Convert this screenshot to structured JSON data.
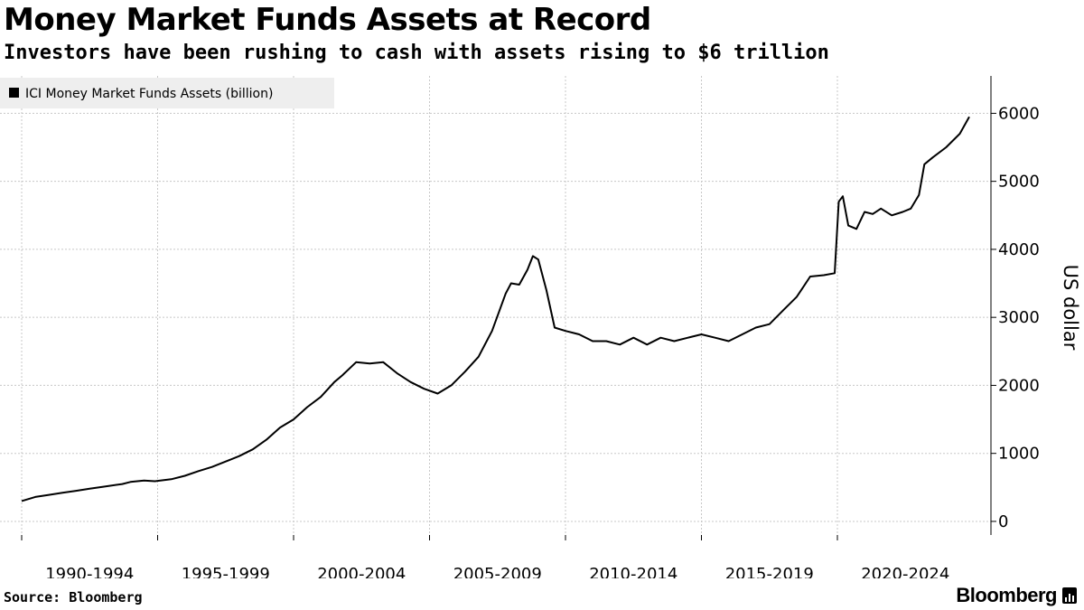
{
  "header": {
    "title": "Money Market Funds Assets at Record",
    "subtitle": "Investors have been rushing to cash with assets rising to $6 trillion"
  },
  "footer": {
    "source": "Source: Bloomberg",
    "brand": "Bloomberg"
  },
  "colors": {
    "line": "#000000",
    "grid": "#c8c8c8",
    "legend_bg": "#eeeeee"
  },
  "chart_data": {
    "type": "line",
    "title": "Money Market Funds Assets at Record",
    "ylabel": "US dollar",
    "xlabel": "",
    "ylim": [
      -200,
      6550
    ],
    "xlim": [
      1990.0,
      2024.85
    ],
    "yticks": [
      0,
      1000,
      2000,
      3000,
      4000,
      5000,
      6000
    ],
    "ytick_labels": [
      "0",
      "1000",
      "2000",
      "3000",
      "4000",
      "5000",
      "6000"
    ],
    "x_boundaries": [
      1990,
      1995,
      2000,
      2005,
      2010,
      2015,
      2020
    ],
    "x_category_labels": [
      {
        "label": "1990-1994",
        "center": 1992.5
      },
      {
        "label": "1995-1999",
        "center": 1997.5
      },
      {
        "label": "2000-2004",
        "center": 2002.5
      },
      {
        "label": "2005-2009",
        "center": 2007.5
      },
      {
        "label": "2010-2014",
        "center": 2012.5
      },
      {
        "label": "2015-2019",
        "center": 2017.5
      },
      {
        "label": "2020-2024",
        "center": 2022.5
      }
    ],
    "grid": true,
    "legend": {
      "position": "top-left",
      "entries": [
        "ICI Money Market Funds Assets (billion)"
      ]
    },
    "series": [
      {
        "name": "ICI Money Market Funds Assets (billion)",
        "x": [
          1990.0,
          1990.5,
          1991.0,
          1991.5,
          1992.0,
          1992.5,
          1993.0,
          1993.7,
          1994.0,
          1994.5,
          1994.9,
          1995.5,
          1996.0,
          1996.5,
          1997.0,
          1997.5,
          1998.0,
          1998.5,
          1999.0,
          1999.5,
          2000.0,
          2000.5,
          2001.0,
          2001.5,
          2001.8,
          2002.3,
          2002.8,
          2003.3,
          2003.8,
          2004.3,
          2004.8,
          2005.3,
          2005.8,
          2006.3,
          2006.8,
          2007.3,
          2007.8,
          2008.0,
          2008.3,
          2008.6,
          2008.8,
          2009.0,
          2009.3,
          2009.6,
          2010.0,
          2010.5,
          2011.0,
          2011.5,
          2012.0,
          2012.5,
          2013.0,
          2013.5,
          2014.0,
          2014.5,
          2015.0,
          2015.5,
          2016.0,
          2016.5,
          2017.0,
          2017.5,
          2018.0,
          2018.5,
          2019.0,
          2019.5,
          2019.9,
          2020.05,
          2020.2,
          2020.4,
          2020.7,
          2021.0,
          2021.3,
          2021.6,
          2022.0,
          2022.4,
          2022.7,
          2023.0,
          2023.2,
          2023.5,
          2024.0,
          2024.5,
          2024.85
        ],
        "values": [
          300,
          360,
          390,
          420,
          450,
          480,
          510,
          550,
          580,
          600,
          590,
          620,
          670,
          740,
          800,
          880,
          960,
          1060,
          1200,
          1380,
          1500,
          1680,
          1830,
          2050,
          2150,
          2340,
          2320,
          2340,
          2180,
          2050,
          1950,
          1880,
          2000,
          2200,
          2420,
          2800,
          3350,
          3500,
          3480,
          3700,
          3900,
          3850,
          3400,
          2850,
          2800,
          2750,
          2650,
          2650,
          2600,
          2700,
          2600,
          2700,
          2650,
          2700,
          2750,
          2700,
          2650,
          2750,
          2850,
          2900,
          3100,
          3300,
          3600,
          3620,
          3650,
          4700,
          4780,
          4350,
          4300,
          4550,
          4520,
          4600,
          4500,
          4550,
          4600,
          4800,
          5250,
          5350,
          5500,
          5700,
          5950
        ]
      }
    ]
  }
}
